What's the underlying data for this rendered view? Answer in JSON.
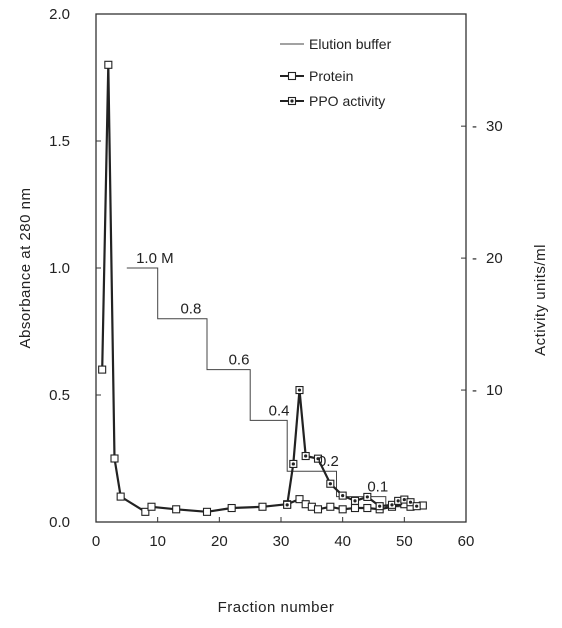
{
  "chart_data": {
    "type": "line",
    "xlabel": "Fraction number",
    "ylabel": "Absorbance at 280 nm",
    "y2label": "Activity units/ml",
    "xlim": [
      0,
      60
    ],
    "ylim": [
      0,
      2.0
    ],
    "y2lim": [
      0,
      38.5
    ],
    "xticks": [
      0,
      10,
      20,
      30,
      40,
      50,
      60
    ],
    "xtick_labels": [
      "0",
      "10",
      "20",
      "30",
      "40",
      "50",
      "60"
    ],
    "yticks": [
      0,
      0.5,
      1.0,
      1.5,
      2.0
    ],
    "ytick_labels": [
      "0.0",
      "0.5",
      "1.0",
      "1.5",
      "2.0"
    ],
    "y2ticks": [
      10,
      20,
      30
    ],
    "y2tick_labels": [
      "10",
      "20",
      "30"
    ],
    "grid": false,
    "legend_position": "top-right",
    "series": [
      {
        "name": "Elution buffer",
        "axis": "left",
        "style": "step",
        "x": [
          5,
          10,
          10,
          18,
          18,
          25,
          25,
          31,
          31,
          39,
          39,
          47,
          47,
          52
        ],
        "y": [
          1.0,
          1.0,
          0.8,
          0.8,
          0.6,
          0.6,
          0.4,
          0.4,
          0.2,
          0.2,
          0.1,
          0.1,
          0.06,
          0.06
        ]
      },
      {
        "name": "Protein",
        "axis": "left",
        "marker": "square",
        "x": [
          1,
          2,
          3,
          4,
          8,
          9,
          13,
          18,
          22,
          27,
          31,
          33,
          34,
          35,
          36,
          38,
          40,
          42,
          44,
          46,
          48,
          50,
          51,
          53
        ],
        "y": [
          0.6,
          1.8,
          0.25,
          0.1,
          0.04,
          0.06,
          0.05,
          0.04,
          0.055,
          0.06,
          0.07,
          0.09,
          0.07,
          0.06,
          0.05,
          0.06,
          0.05,
          0.055,
          0.055,
          0.05,
          0.06,
          0.07,
          0.06,
          0.065
        ]
      },
      {
        "name": "PPO activity",
        "axis": "right",
        "marker": "dotted-square",
        "x": [
          31,
          32,
          33,
          34,
          36,
          38,
          40,
          42,
          44,
          46,
          48,
          49,
          50,
          51,
          52
        ],
        "y": [
          1.3,
          4.4,
          10.0,
          5.0,
          4.8,
          2.9,
          2.0,
          1.6,
          1.9,
          1.2,
          1.3,
          1.6,
          1.7,
          1.5,
          1.2
        ]
      }
    ],
    "annotations": [
      {
        "text": "1.0  M",
        "x": 6.5,
        "y": 1.02
      },
      {
        "text": "0.8",
        "x": 13.7,
        "y": 0.82
      },
      {
        "text": "0.6",
        "x": 21.5,
        "y": 0.62
      },
      {
        "text": "0.4",
        "x": 28.0,
        "y": 0.42
      },
      {
        "text": "0.2",
        "x": 36.0,
        "y": 0.22
      },
      {
        "text": "0.1",
        "x": 44.0,
        "y": 0.12
      }
    ]
  }
}
